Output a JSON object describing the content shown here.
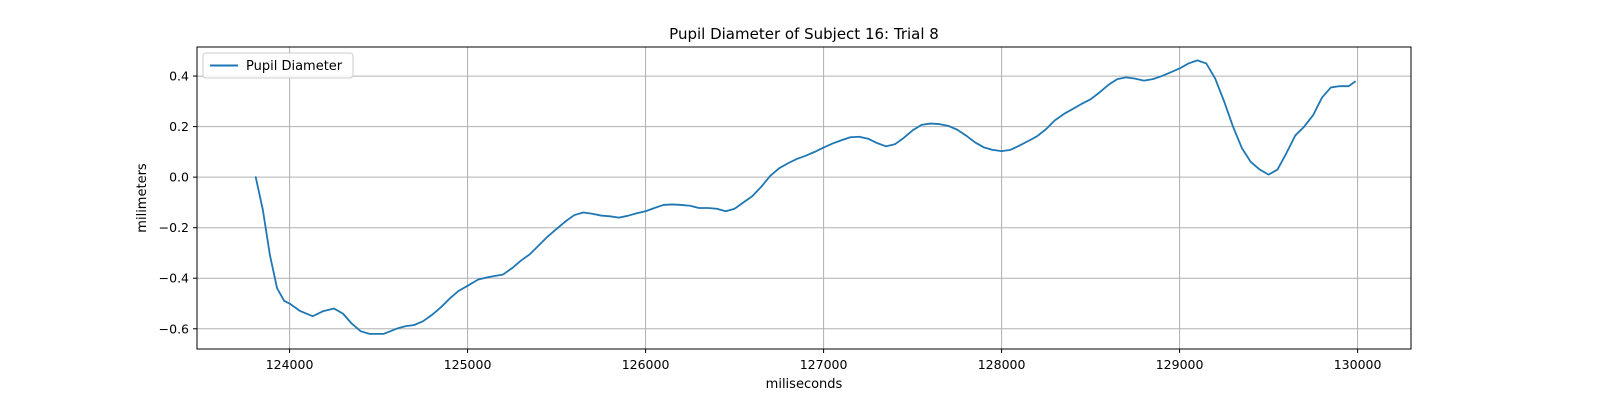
{
  "chart_data": {
    "type": "line",
    "title": "Pupil Diameter of Subject 16: Trial 8",
    "xlabel": "miliseconds",
    "ylabel": "milimeters",
    "xlim": [
      123480,
      130300
    ],
    "ylim": [
      -0.68,
      0.515
    ],
    "xticks": [
      124000,
      125000,
      126000,
      127000,
      128000,
      129000,
      130000
    ],
    "yticks": [
      -0.6,
      -0.4,
      -0.2,
      0.0,
      0.2,
      0.4
    ],
    "xtick_labels": [
      "124000",
      "125000",
      "126000",
      "127000",
      "128000",
      "129000",
      "130000"
    ],
    "ytick_labels": [
      "−0.6",
      "−0.4",
      "−0.2",
      "0.0",
      "0.2",
      "0.4"
    ],
    "grid": true,
    "legend": {
      "position": "top-left",
      "entries": [
        "Pupil Diameter"
      ]
    },
    "series": [
      {
        "name": "Pupil Diameter",
        "color": "#1f77b4",
        "x": [
          123810,
          123850,
          123890,
          123930,
          123970,
          124000,
          124060,
          124130,
          124190,
          124250,
          124300,
          124350,
          124400,
          124450,
          124530,
          124600,
          124650,
          124700,
          124750,
          124800,
          124850,
          124900,
          124950,
          125000,
          125060,
          125120,
          125200,
          125250,
          125300,
          125350,
          125400,
          125450,
          125500,
          125550,
          125600,
          125650,
          125700,
          125750,
          125800,
          125850,
          125900,
          125950,
          126000,
          126050,
          126100,
          126150,
          126200,
          126250,
          126300,
          126350,
          126400,
          126450,
          126500,
          126550,
          126600,
          126650,
          126700,
          126750,
          126800,
          126850,
          126900,
          126950,
          127000,
          127050,
          127100,
          127150,
          127200,
          127250,
          127300,
          127350,
          127400,
          127450,
          127500,
          127550,
          127600,
          127650,
          127700,
          127750,
          127800,
          127850,
          127900,
          127950,
          128000,
          128050,
          128100,
          128150,
          128200,
          128250,
          128300,
          128350,
          128400,
          128450,
          128500,
          128550,
          128600,
          128650,
          128700,
          128750,
          128800,
          128850,
          128900,
          128950,
          129000,
          129050,
          129100,
          129150,
          129200,
          129250,
          129300,
          129350,
          129400,
          129450,
          129500,
          129550,
          129600,
          129650,
          129700,
          129750,
          129800,
          129850,
          129900,
          129950,
          129985
        ],
        "y": [
          0.0,
          -0.13,
          -0.31,
          -0.44,
          -0.49,
          -0.5,
          -0.53,
          -0.55,
          -0.53,
          -0.52,
          -0.54,
          -0.58,
          -0.61,
          -0.62,
          -0.62,
          -0.6,
          -0.59,
          -0.585,
          -0.57,
          -0.545,
          -0.515,
          -0.48,
          -0.45,
          -0.43,
          -0.405,
          -0.395,
          -0.385,
          -0.36,
          -0.33,
          -0.305,
          -0.27,
          -0.235,
          -0.205,
          -0.175,
          -0.15,
          -0.14,
          -0.145,
          -0.152,
          -0.155,
          -0.16,
          -0.153,
          -0.143,
          -0.135,
          -0.122,
          -0.11,
          -0.108,
          -0.11,
          -0.113,
          -0.122,
          -0.122,
          -0.125,
          -0.135,
          -0.125,
          -0.1,
          -0.075,
          -0.038,
          0.005,
          0.035,
          0.055,
          0.072,
          0.085,
          0.1,
          0.117,
          0.133,
          0.146,
          0.158,
          0.16,
          0.152,
          0.135,
          0.122,
          0.13,
          0.155,
          0.185,
          0.207,
          0.212,
          0.21,
          0.203,
          0.188,
          0.165,
          0.138,
          0.118,
          0.108,
          0.103,
          0.108,
          0.125,
          0.143,
          0.162,
          0.19,
          0.225,
          0.25,
          0.27,
          0.29,
          0.308,
          0.335,
          0.365,
          0.388,
          0.395,
          0.39,
          0.382,
          0.388,
          0.4,
          0.415,
          0.43,
          0.45,
          0.462,
          0.45,
          0.39,
          0.3,
          0.2,
          0.115,
          0.06,
          0.03,
          0.01,
          0.03,
          0.095,
          0.165,
          0.2,
          0.245,
          0.315,
          0.355,
          0.36,
          0.36,
          0.378
        ]
      }
    ]
  }
}
